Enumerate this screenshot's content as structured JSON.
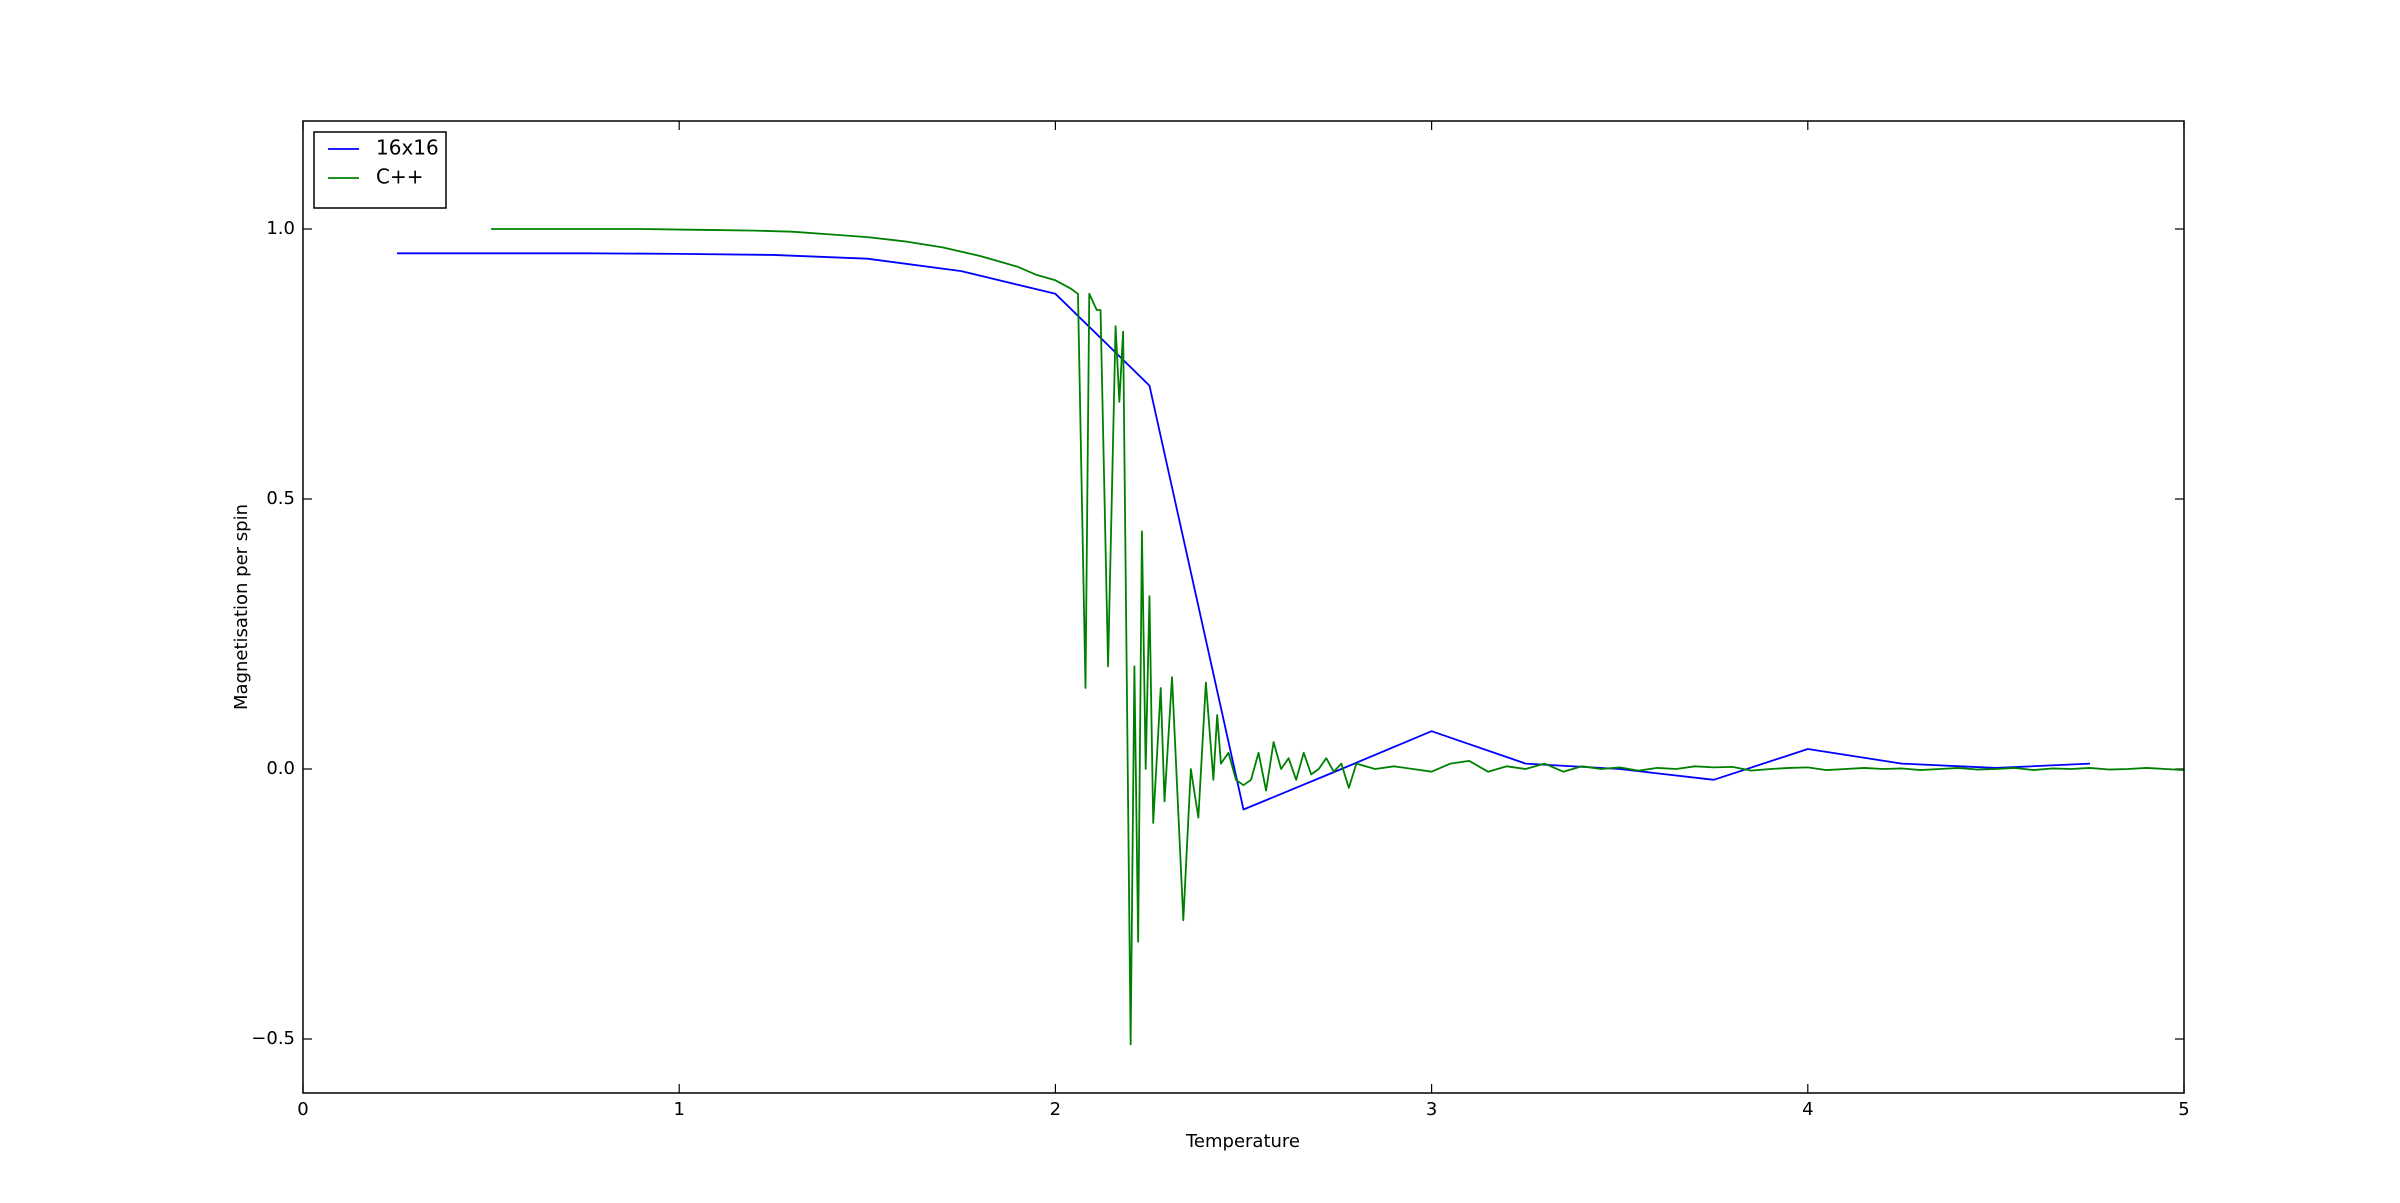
{
  "chart_data": {
    "type": "line",
    "xlabel": "Temperature",
    "ylabel": "Magnetisation per spin",
    "xlim": [
      0,
      5
    ],
    "xticks": [
      0,
      1,
      2,
      3,
      4,
      5
    ],
    "ylim": [
      -0.6,
      1.2
    ],
    "yticks": [
      {
        "value": -0.5,
        "label": "−0.5"
      },
      {
        "value": 0,
        "label": "0.0"
      },
      0.5,
      {
        "value": 1,
        "label": "1.0"
      }
    ],
    "legend": "upper left",
    "series": [
      {
        "name": "16x16",
        "color": "#0000ff",
        "x": [
          0.25,
          0.5,
          0.75,
          1.0,
          1.25,
          1.5,
          1.75,
          2.0,
          2.25,
          2.5,
          2.75,
          3.0,
          3.25,
          3.5,
          3.75,
          4.0,
          4.25,
          4.5,
          4.75
        ],
        "values": [
          0.955,
          0.955,
          0.955,
          0.954,
          0.952,
          0.945,
          0.922,
          0.88,
          0.71,
          -0.075,
          -0.003,
          0.07,
          0.01,
          0.0,
          -0.02,
          0.037,
          0.01,
          0.002,
          0.01
        ]
      },
      {
        "name": "C++",
        "color": "#008000",
        "x": [
          0.5,
          0.6,
          0.7,
          0.8,
          0.9,
          1.0,
          1.1,
          1.2,
          1.3,
          1.4,
          1.5,
          1.6,
          1.7,
          1.8,
          1.9,
          1.95,
          2.0,
          2.04,
          2.06,
          2.08,
          2.09,
          2.11,
          2.12,
          2.14,
          2.16,
          2.17,
          2.18,
          2.2,
          2.21,
          2.22,
          2.23,
          2.24,
          2.25,
          2.26,
          2.28,
          2.29,
          2.31,
          2.34,
          2.36,
          2.38,
          2.4,
          2.42,
          2.43,
          2.44,
          2.46,
          2.48,
          2.5,
          2.52,
          2.54,
          2.56,
          2.58,
          2.6,
          2.62,
          2.64,
          2.66,
          2.68,
          2.7,
          2.72,
          2.74,
          2.76,
          2.78,
          2.8,
          2.85,
          2.9,
          2.95,
          3.0,
          3.05,
          3.1,
          3.15,
          3.2,
          3.25,
          3.3,
          3.35,
          3.4,
          3.45,
          3.5,
          3.55,
          3.6,
          3.65,
          3.7,
          3.75,
          3.8,
          3.85,
          3.9,
          3.95,
          4.0,
          4.05,
          4.1,
          4.15,
          4.2,
          4.25,
          4.3,
          4.35,
          4.4,
          4.45,
          4.5,
          4.55,
          4.6,
          4.65,
          4.7,
          4.75,
          4.8,
          4.85,
          4.9,
          4.95,
          5.0
        ],
        "values": [
          1.0,
          1.0,
          1.0,
          1.0,
          1.0,
          0.999,
          0.998,
          0.997,
          0.995,
          0.99,
          0.985,
          0.977,
          0.966,
          0.95,
          0.93,
          0.915,
          0.905,
          0.89,
          0.88,
          0.15,
          0.88,
          0.85,
          0.85,
          0.19,
          0.82,
          0.68,
          0.81,
          -0.51,
          0.19,
          -0.32,
          0.44,
          0.0,
          0.32,
          -0.1,
          0.15,
          -0.06,
          0.17,
          -0.28,
          0.0,
          -0.09,
          0.16,
          -0.02,
          0.1,
          0.01,
          0.03,
          -0.02,
          -0.03,
          -0.02,
          0.03,
          -0.04,
          0.05,
          0.0,
          0.02,
          -0.02,
          0.03,
          -0.01,
          0.0,
          0.02,
          -0.005,
          0.01,
          -0.035,
          0.01,
          0.0,
          0.005,
          0.0,
          -0.005,
          0.01,
          0.015,
          -0.005,
          0.005,
          0.0,
          0.01,
          -0.005,
          0.005,
          0.0,
          0.003,
          -0.003,
          0.002,
          0.0,
          0.005,
          0.003,
          0.004,
          -0.003,
          0.0,
          0.002,
          0.003,
          -0.002,
          0.0,
          0.002,
          0.0,
          0.001,
          -0.002,
          0.0,
          0.002,
          -0.001,
          0.0,
          0.002,
          -0.002,
          0.001,
          0.0,
          0.002,
          -0.001,
          0.0,
          0.002,
          0.0,
          -0.002
        ]
      }
    ]
  }
}
